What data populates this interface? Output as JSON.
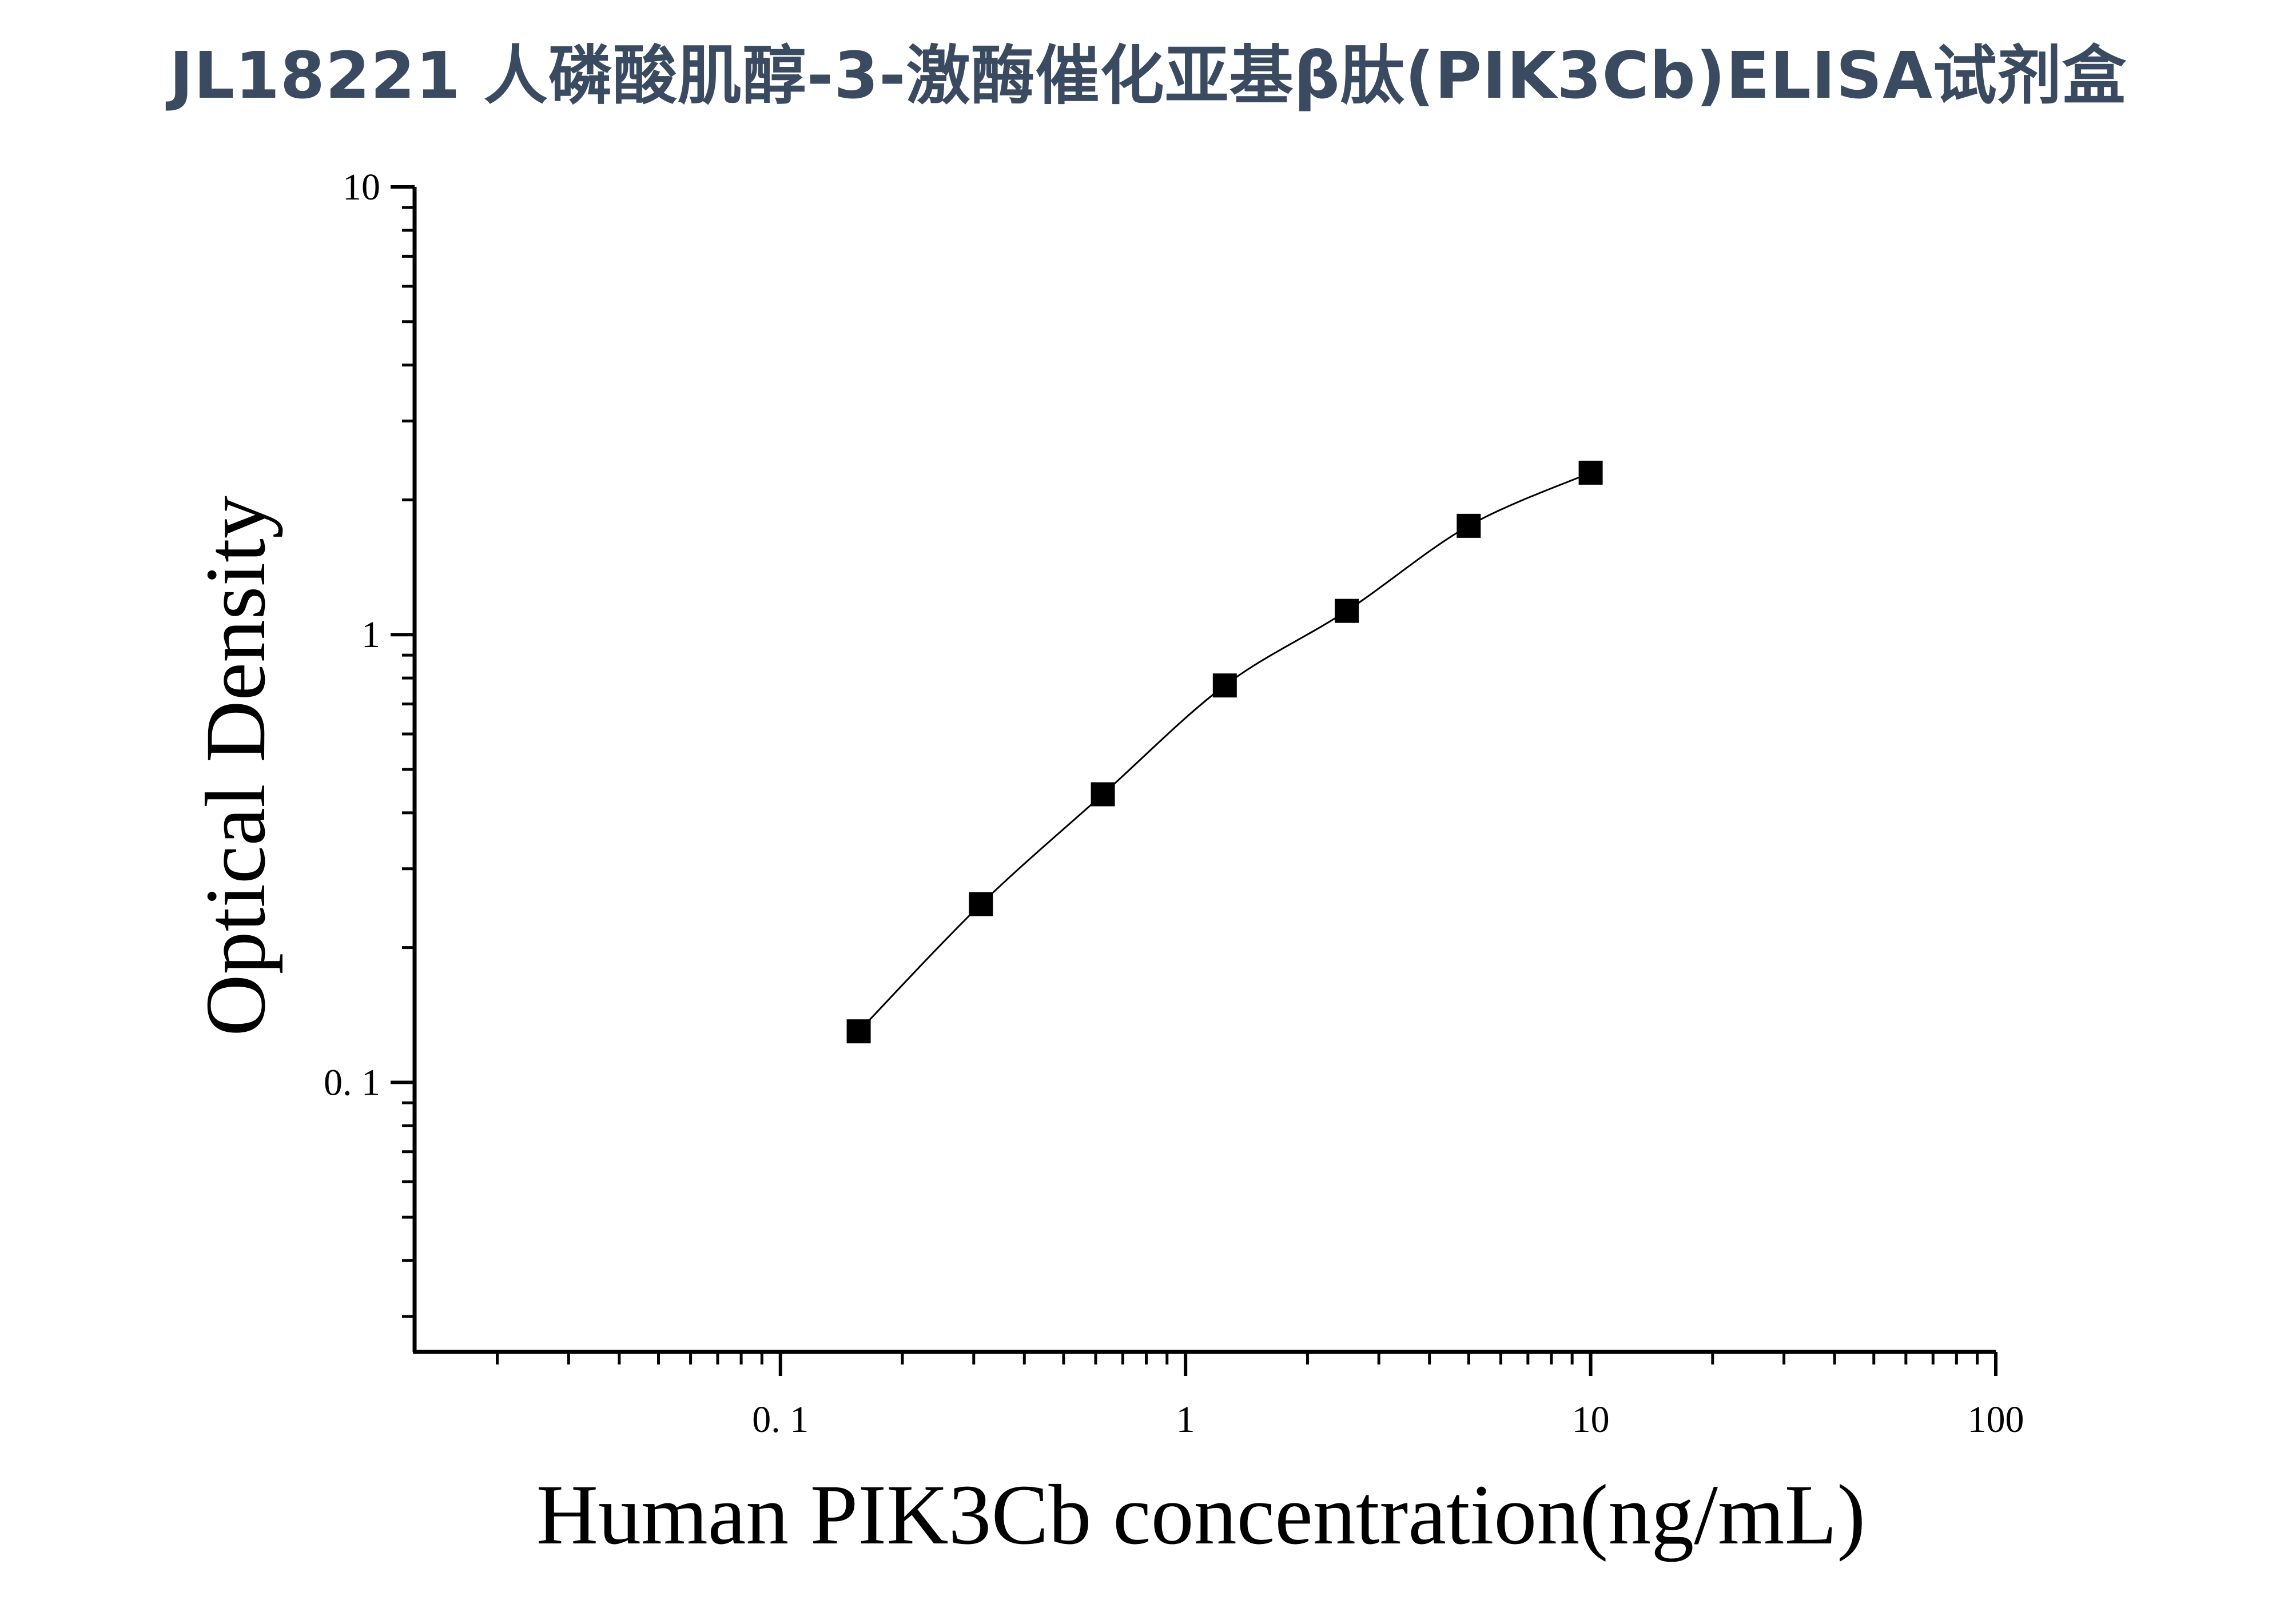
{
  "page": {
    "title": "JL18221 人磷酸肌醇-3-激酶催化亚基β肽(PIK3Cb)ELISA试剂盒"
  },
  "chart_data": {
    "type": "scatter",
    "title": "",
    "xlabel": "Human PIK3Cb concentration(ng/mL)",
    "ylabel": "Optical Density",
    "x_scale": "log",
    "y_scale": "log",
    "xlim": [
      0.0125,
      100
    ],
    "ylim": [
      0.025,
      10
    ],
    "x_ticks": [
      {
        "value": 0.1,
        "label": "0. 1"
      },
      {
        "value": 1,
        "label": "1"
      },
      {
        "value": 10,
        "label": "10"
      },
      {
        "value": 100,
        "label": "100"
      }
    ],
    "y_ticks": [
      {
        "value": 0.1,
        "label": "0. 1"
      },
      {
        "value": 1,
        "label": "1"
      },
      {
        "value": 10,
        "label": "10"
      }
    ],
    "grid": false,
    "legend": "none",
    "marker": "square",
    "marker_color": "#000000",
    "line_color": "#000000",
    "series": [
      {
        "x": [
          0.156,
          0.3125,
          0.625,
          1.25,
          2.5,
          5,
          10
        ],
        "y": [
          0.13,
          0.25,
          0.44,
          0.77,
          1.13,
          1.75,
          2.3
        ]
      }
    ]
  }
}
